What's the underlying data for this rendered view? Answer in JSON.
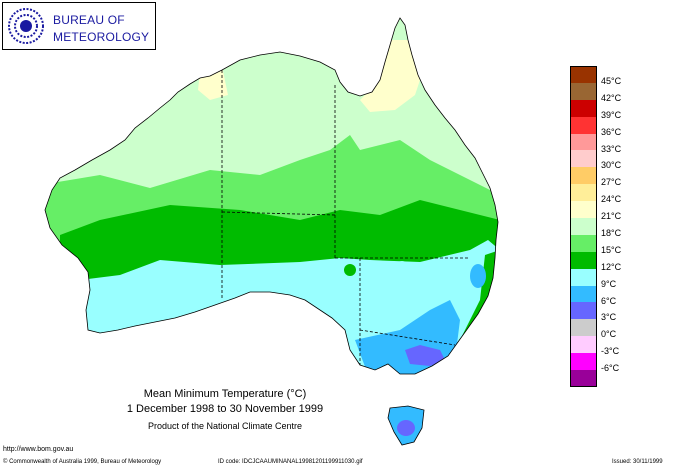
{
  "org": {
    "line1": "BUREAU OF",
    "line2": "METEOROLOGY"
  },
  "legend": [
    {
      "label": "45°C",
      "color": "#993300"
    },
    {
      "label": "42°C",
      "color": "#996633"
    },
    {
      "label": "39°C",
      "color": "#cc0000"
    },
    {
      "label": "36°C",
      "color": "#ff3333"
    },
    {
      "label": "33°C",
      "color": "#ff9999"
    },
    {
      "label": "30°C",
      "color": "#ffcccc"
    },
    {
      "label": "27°C",
      "color": "#ffcc66"
    },
    {
      "label": "24°C",
      "color": "#ffee99"
    },
    {
      "label": "21°C",
      "color": "#ffffcc"
    },
    {
      "label": "18°C",
      "color": "#ccffcc"
    },
    {
      "label": "15°C",
      "color": "#66ee66"
    },
    {
      "label": "12°C",
      "color": "#00bb00"
    },
    {
      "label": "9°C",
      "color": "#99ffff"
    },
    {
      "label": "6°C",
      "color": "#33bbff"
    },
    {
      "label": "3°C",
      "color": "#6666ff"
    },
    {
      "label": "0°C",
      "color": "#cccccc"
    },
    {
      "label": "-3°C",
      "color": "#ffccff"
    },
    {
      "label": "-6°C",
      "color": "#ff00ff"
    },
    {
      "label": "",
      "color": "#990099"
    }
  ],
  "caption": {
    "title": "Mean Minimum Temperature (°C)",
    "dates": "1 December 1998 to 30 November 1999",
    "product": "Product of the National Climate Centre"
  },
  "url": "http://www.bom.gov.au",
  "footer": {
    "copyright": "© Commonwealth of Australia 1999, Bureau of Meteorology",
    "id_code": "ID code: IDCJCAAUMINANAL19981201199911030.gif",
    "issued": "Issued: 30/11/1999"
  }
}
